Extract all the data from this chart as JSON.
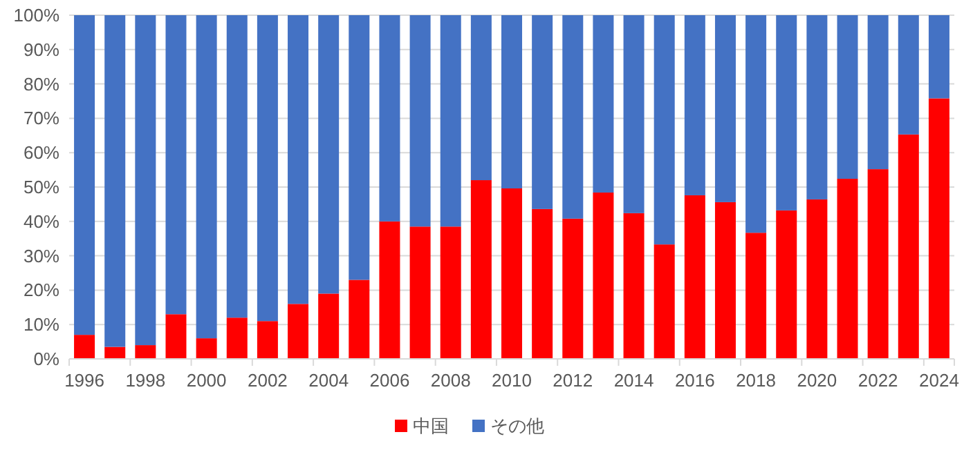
{
  "chart_data": {
    "type": "bar",
    "stacked": true,
    "categories": [
      "1996",
      null,
      "1998",
      null,
      "2000",
      null,
      "2002",
      null,
      "2004",
      null,
      "2006",
      null,
      "2008",
      null,
      "2010",
      null,
      "2012",
      null,
      "2014",
      null,
      "2016",
      null,
      "2018",
      null,
      "2020",
      null,
      "2022",
      null,
      "2024"
    ],
    "series": [
      {
        "name": "中国",
        "color": "#ff0000",
        "values": [
          7,
          3.5,
          4,
          13,
          6,
          12,
          11,
          16,
          19,
          23,
          40,
          38.5,
          38.5,
          52,
          49.6,
          43.6,
          40.8,
          48.4,
          42.4,
          33.3,
          47.6,
          45.6,
          36.7,
          43.2,
          46.4,
          52.4,
          55.2,
          65.3,
          75.8
        ]
      },
      {
        "name": "その他",
        "color": "#4472c4",
        "values": [
          93,
          96.5,
          96,
          87,
          94,
          88,
          89,
          84,
          81,
          77,
          60,
          61.5,
          61.5,
          48,
          50.4,
          56.4,
          59.2,
          51.6,
          57.6,
          66.7,
          52.4,
          54.4,
          63.3,
          56.8,
          53.6,
          47.6,
          44.8,
          34.7,
          24.2
        ]
      }
    ],
    "ylim": [
      0,
      100
    ],
    "yticks": [
      {
        "value": 0,
        "label": "0%"
      },
      {
        "value": 10,
        "label": "10%"
      },
      {
        "value": 20,
        "label": "20%"
      },
      {
        "value": 30,
        "label": "30%"
      },
      {
        "value": 40,
        "label": "40%"
      },
      {
        "value": 50,
        "label": "50%"
      },
      {
        "value": 60,
        "label": "60%"
      },
      {
        "value": 70,
        "label": "70%"
      },
      {
        "value": 80,
        "label": "80%"
      },
      {
        "value": 90,
        "label": "90%"
      },
      {
        "value": 100,
        "label": "100%"
      }
    ],
    "grid": "y",
    "legend": "bottom"
  }
}
